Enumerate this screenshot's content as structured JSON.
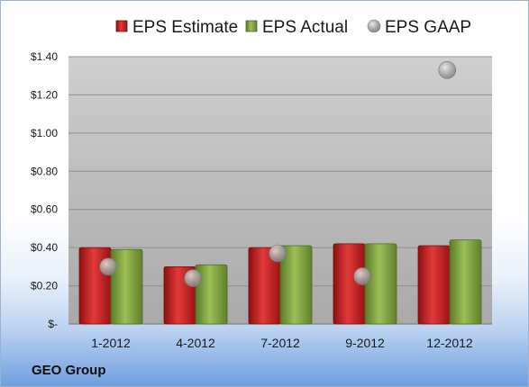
{
  "company": "GEO Group",
  "chart_data": {
    "type": "bar",
    "categories": [
      "1-2012",
      "4-2012",
      "7-2012",
      "9-2012",
      "12-2012"
    ],
    "series": [
      {
        "name": "EPS Estimate",
        "kind": "bar",
        "color": "#c41e1e",
        "values": [
          0.4,
          0.3,
          0.4,
          0.42,
          0.41
        ]
      },
      {
        "name": "EPS Actual",
        "kind": "bar",
        "color": "#7fa040",
        "values": [
          0.39,
          0.31,
          0.41,
          0.42,
          0.44
        ]
      },
      {
        "name": "EPS GAAP",
        "kind": "scatter",
        "color": "#a8a8a8",
        "values": [
          0.3,
          0.24,
          0.37,
          0.25,
          1.33
        ]
      }
    ],
    "y_ticks": [
      "$-",
      "$0.20",
      "$0.40",
      "$0.60",
      "$0.80",
      "$1.00",
      "$1.20",
      "$1.40"
    ],
    "ylim": [
      0,
      1.4
    ],
    "ystep": 0.2,
    "grid": true,
    "legend_position": "top",
    "title": "",
    "xlabel": "",
    "ylabel": ""
  }
}
